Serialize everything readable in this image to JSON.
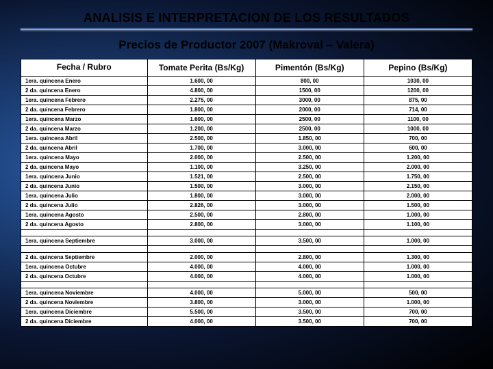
{
  "title": "ANALISIS E INTERPRETACION DE LOS RESULTADOS",
  "subtitle": "Precios de Productor 2007   (Makroval – Valera)",
  "columns": [
    "Fecha / Rubro",
    "Tomate Perita (Bs/Kg)",
    "Pimentón (Bs/Kg)",
    "Pepino (Bs/Kg)"
  ],
  "rows": [
    [
      "1era. quincena Enero",
      "1.600, 00",
      "800, 00",
      "1030, 00"
    ],
    [
      "2 da. quincena Enero",
      "4.800, 00",
      "1500, 00",
      "1200, 00"
    ],
    [
      "1era. quincena Febrero",
      "2.275, 00",
      "3000, 00",
      "875, 00"
    ],
    [
      "2 da. quincena Febrero",
      "1.800, 00",
      "2000, 00",
      "714, 00"
    ],
    [
      "1era. quincena Marzo",
      "1.600, 00",
      "2500, 00",
      "1100, 00"
    ],
    [
      "2 da. quincena Marzo",
      "1.200, 00",
      "2500, 00",
      "1000, 00"
    ],
    [
      "1era. quincena Abril",
      "2.500, 00",
      "1.850, 00",
      "700, 00"
    ],
    [
      "2 da. quincena Abril",
      "1.700, 00",
      "3.000, 00",
      "600, 00"
    ],
    [
      "1era. quincena Mayo",
      "2.000, 00",
      "2.500, 00",
      "1.200, 00"
    ],
    [
      "2 da. quincena Mayo",
      "1.100, 00",
      "3.250, 00",
      "2.000, 00"
    ],
    [
      "1era. quincena Junio",
      "1.521, 00",
      "2.500, 00",
      "1.750, 00"
    ],
    [
      "2 da. quincena Junio",
      "1.500, 00",
      "3.000, 00",
      "2.150, 00"
    ],
    [
      "1era. quincena Julio",
      "1.800, 00",
      "3.000, 00",
      "2.000, 00"
    ],
    [
      "2 da. quincena Julio",
      "2.826, 00",
      "3.000, 00",
      "1.500, 00"
    ],
    [
      "1era. quincena Agosto",
      "2.500, 00",
      "2.800, 00",
      "1.000, 00"
    ],
    [
      "2 da. quincena Agosto",
      "2.800, 00",
      "3.000, 00",
      "1.100, 00"
    ]
  ],
  "rows2": [
    [
      "1era. quincena Septiembre",
      "3.000, 00",
      "3.500, 00",
      "1.000, 00"
    ]
  ],
  "rows3": [
    [
      "2 da. quincena Septiembre",
      "2.000, 00",
      "2.800, 00",
      "1.300, 00"
    ],
    [
      "1era. quincena Octubre",
      "4.000, 00",
      "4.000, 00",
      "1.000, 00"
    ],
    [
      "2 da. quincena Octubre",
      "4.000, 00",
      "4.000, 00",
      "1.000, 00"
    ]
  ],
  "rows4": [
    [
      "1era. quincena Noviembre",
      "4.000, 00",
      "5.000, 00",
      "500, 00"
    ],
    [
      "2 da. quincena Noviembre",
      "3.800, 00",
      "3.000, 00",
      "1.000, 00"
    ],
    [
      "1era. quincena Diciembre",
      "5.500, 00",
      "3.500, 00",
      "700, 00"
    ],
    [
      "2 da. quincena Diciembre",
      "4.000, 00",
      "3.500, 00",
      "700, 00"
    ]
  ],
  "styling": {
    "slide_width": 720,
    "slide_height": 540,
    "background_gradient": [
      "#2a5ca8",
      "#1a3a6e",
      "#0a1530",
      "#000000"
    ],
    "title_color": "#000000",
    "title_fontsize": 18,
    "subtitle_fontsize": 17,
    "table_bg": "#ffffff",
    "table_border": "#000000",
    "header_fontsize": 12,
    "cell_fontsize": 8,
    "underline_colors": [
      "#5a7db5",
      "#2a4a7a",
      "#ffffff"
    ]
  }
}
